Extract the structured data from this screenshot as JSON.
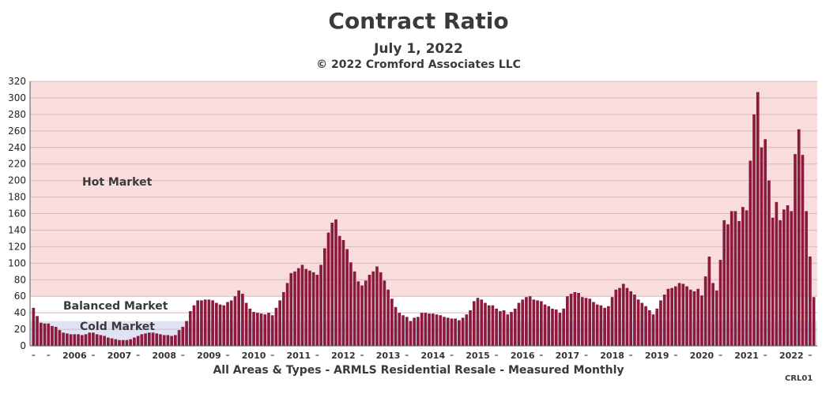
{
  "chart_data": {
    "type": "bar",
    "title": "Contract Ratio",
    "subtitle": "July 1, 2022",
    "copyright": "© 2022 Cromford Associates LLC",
    "footer": "All Areas & Types - ARMLS Residential Resale - Measured Monthly",
    "code": "CRL01",
    "ylim": [
      0,
      320
    ],
    "yticks": [
      0,
      20,
      40,
      60,
      80,
      100,
      120,
      140,
      160,
      180,
      200,
      220,
      240,
      260,
      280,
      300,
      320
    ],
    "grid": true,
    "zones": [
      {
        "label": "Hot Market",
        "from": 60,
        "to": 320,
        "color": "#f9dcdc"
      },
      {
        "label": "Balanced Market",
        "from": 30,
        "to": 60,
        "color": "#ffffff"
      },
      {
        "label": "Cold Market",
        "from": 0,
        "to": 30,
        "color": "#dfe3f5"
      }
    ],
    "year_labels": [
      "2006",
      "2007",
      "2008",
      "2009",
      "2010",
      "2011",
      "2012",
      "2013",
      "2014",
      "2015",
      "2016",
      "2017",
      "2018",
      "2019",
      "2020",
      "2021",
      "2022"
    ],
    "bar_color": "#8b1a3c",
    "values": [
      46,
      36,
      28,
      27,
      27,
      24,
      23,
      19,
      16,
      15,
      14,
      14,
      14,
      13,
      14,
      16,
      16,
      14,
      13,
      12,
      10,
      9,
      8,
      7,
      7,
      7,
      8,
      10,
      12,
      14,
      15,
      16,
      16,
      15,
      14,
      13,
      13,
      12,
      13,
      19,
      23,
      30,
      42,
      49,
      55,
      55,
      56,
      56,
      55,
      52,
      50,
      49,
      53,
      55,
      60,
      67,
      63,
      52,
      45,
      41,
      40,
      39,
      38,
      40,
      37,
      46,
      55,
      65,
      76,
      88,
      90,
      94,
      98,
      93,
      91,
      89,
      86,
      98,
      118,
      137,
      149,
      153,
      133,
      128,
      117,
      101,
      90,
      78,
      73,
      79,
      86,
      90,
      96,
      89,
      79,
      68,
      57,
      47,
      40,
      37,
      35,
      30,
      34,
      35,
      40,
      40,
      39,
      39,
      38,
      37,
      35,
      34,
      33,
      33,
      31,
      34,
      38,
      43,
      54,
      58,
      56,
      52,
      49,
      49,
      45,
      42,
      43,
      38,
      41,
      45,
      52,
      56,
      59,
      60,
      56,
      55,
      54,
      50,
      48,
      45,
      44,
      40,
      45,
      60,
      63,
      65,
      64,
      59,
      58,
      57,
      53,
      50,
      49,
      46,
      48,
      59,
      68,
      70,
      75,
      70,
      66,
      62,
      56,
      52,
      48,
      43,
      38,
      45,
      55,
      62,
      69,
      70,
      72,
      76,
      75,
      72,
      68,
      66,
      69,
      61,
      84,
      108,
      76,
      67,
      104,
      152,
      147,
      163,
      163,
      151,
      168,
      164,
      224,
      280,
      307,
      240,
      250,
      200,
      155,
      174,
      152,
      165,
      170,
      163,
      232,
      262,
      231,
      163,
      108,
      59
    ]
  }
}
